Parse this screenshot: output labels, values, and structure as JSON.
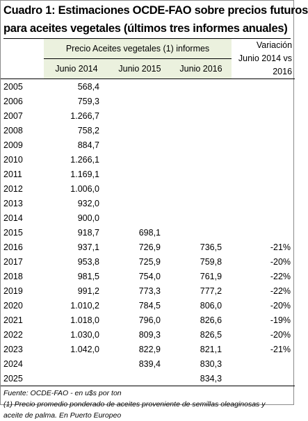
{
  "title": {
    "line1": "Cuadro 1: Estimaciones OCDE-FAO sobre precios futuros",
    "line2": "para aceites vegetales  (últimos tres informes anuales)"
  },
  "header": {
    "group_label": "Precio Aceites vegetales (1) informes",
    "variation_line1": "Variación",
    "variation_line2": "Junio 2014 vs",
    "variation_line3": "2016",
    "columns": [
      "Junio 2014",
      "Junio 2015",
      "Junio 2016"
    ]
  },
  "rows": [
    {
      "year": "2005",
      "j2014": "568,4",
      "j2015": "",
      "j2016": "",
      "var": ""
    },
    {
      "year": "2006",
      "j2014": "759,3",
      "j2015": "",
      "j2016": "",
      "var": ""
    },
    {
      "year": "2007",
      "j2014": "1.266,7",
      "j2015": "",
      "j2016": "",
      "var": ""
    },
    {
      "year": "2008",
      "j2014": "758,2",
      "j2015": "",
      "j2016": "",
      "var": ""
    },
    {
      "year": "2009",
      "j2014": "884,7",
      "j2015": "",
      "j2016": "",
      "var": ""
    },
    {
      "year": "2010",
      "j2014": "1.266,1",
      "j2015": "",
      "j2016": "",
      "var": ""
    },
    {
      "year": "2011",
      "j2014": "1.169,1",
      "j2015": "",
      "j2016": "",
      "var": ""
    },
    {
      "year": "2012",
      "j2014": "1.006,0",
      "j2015": "",
      "j2016": "",
      "var": ""
    },
    {
      "year": "2013",
      "j2014": "932,0",
      "j2015": "",
      "j2016": "",
      "var": ""
    },
    {
      "year": "2014",
      "j2014": "900,0",
      "j2015": "",
      "j2016": "",
      "var": ""
    },
    {
      "year": "2015",
      "j2014": "918,7",
      "j2015": "698,1",
      "j2016": "",
      "var": ""
    },
    {
      "year": "2016",
      "j2014": "937,1",
      "j2015": "726,9",
      "j2016": "736,5",
      "var": "-21%"
    },
    {
      "year": "2017",
      "j2014": "953,8",
      "j2015": "725,9",
      "j2016": "759,8",
      "var": "-20%"
    },
    {
      "year": "2018",
      "j2014": "981,5",
      "j2015": "754,0",
      "j2016": "761,9",
      "var": "-22%"
    },
    {
      "year": "2019",
      "j2014": "991,2",
      "j2015": "773,3",
      "j2016": "777,2",
      "var": "-22%"
    },
    {
      "year": "2020",
      "j2014": "1.010,2",
      "j2015": "784,5",
      "j2016": "806,0",
      "var": "-20%"
    },
    {
      "year": "2021",
      "j2014": "1.018,0",
      "j2015": "796,0",
      "j2016": "826,6",
      "var": "-19%"
    },
    {
      "year": "2022",
      "j2014": "1.030,0",
      "j2015": "809,3",
      "j2016": "826,5",
      "var": "-20%"
    },
    {
      "year": "2023",
      "j2014": "1.042,0",
      "j2015": "822,9",
      "j2016": "821,1",
      "var": "-21%"
    },
    {
      "year": "2024",
      "j2014": "",
      "j2015": "839,4",
      "j2016": "830,3",
      "var": ""
    },
    {
      "year": "2025",
      "j2014": "",
      "j2015": "",
      "j2016": "834,3",
      "var": ""
    }
  ],
  "footer": {
    "source": "Fuente: OCDE-FAO - en u$s por ton",
    "note_line1": "(1) Precio promedio ponderado de aceites proveniente de semillas oleaginosas y",
    "note_line2": "aceite de palma. En Puerto Europeo"
  }
}
